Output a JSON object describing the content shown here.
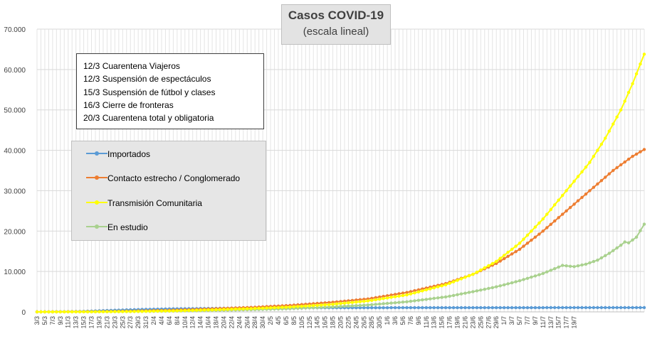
{
  "chart_data": {
    "type": "line",
    "title": "Casos  COVID-19",
    "subtitle": "(escala lineal)",
    "ylim": [
      0,
      70000
    ],
    "yticks": [
      "0",
      "10.000",
      "20.000",
      "30.000",
      "40.000",
      "50.000",
      "60.000",
      "70.000"
    ],
    "grid": true,
    "legend_position": "left",
    "events": [
      "12/3 Cuarentena Viajeros",
      "12/3 Suspensión de espectáculos",
      "15/3 Suspensión de fútbol y clases",
      "16/3 Cierre de fronteras",
      "20/3 Cuarentena total y obligatoria"
    ],
    "x_labels": [
      "3/3",
      "5/3",
      "7/3",
      "9/3",
      "11/3",
      "13/3",
      "15/3",
      "17/3",
      "19/3",
      "21/3",
      "23/3",
      "25/3",
      "27/3",
      "29/3",
      "31/3",
      "2/4",
      "4/4",
      "6/4",
      "8/4",
      "10/4",
      "12/4",
      "14/4",
      "16/4",
      "18/4",
      "20/4",
      "22/4",
      "24/4",
      "26/4",
      "28/4",
      "30/4",
      "2/5",
      "4/5",
      "6/5",
      "8/5",
      "10/5",
      "12/5",
      "14/5",
      "16/5",
      "18/5",
      "20/5",
      "22/5",
      "24/5",
      "26/5",
      "28/5",
      "30/5",
      "1/6",
      "3/6",
      "5/6",
      "7/6",
      "9/6",
      "11/6",
      "13/6",
      "15/6",
      "17/6",
      "19/6",
      "21/6",
      "23/6",
      "25/6",
      "27/6",
      "29/6",
      "1/7",
      "3/7",
      "5/7",
      "7/7",
      "9/7",
      "11/7",
      "13/7",
      "15/7",
      "17/7",
      "19/7"
    ],
    "series": [
      {
        "name": "Importados",
        "color": "#5b9bd5",
        "keypoints": [
          [
            0,
            1
          ],
          [
            7,
            40
          ],
          [
            13,
            150
          ],
          [
            20,
            400
          ],
          [
            27,
            600
          ],
          [
            35,
            750
          ],
          [
            45,
            850
          ],
          [
            55,
            980
          ],
          [
            70,
            1020
          ],
          [
            139,
            1050
          ]
        ]
      },
      {
        "name": "Contacto estrecho / Conglomerado",
        "color": "#ed7d31",
        "keypoints": [
          [
            0,
            0
          ],
          [
            14,
            50
          ],
          [
            25,
            200
          ],
          [
            35,
            420
          ],
          [
            45,
            750
          ],
          [
            55,
            1100
          ],
          [
            65,
            1600
          ],
          [
            75,
            2300
          ],
          [
            85,
            3200
          ],
          [
            95,
            4800
          ],
          [
            105,
            7000
          ],
          [
            112,
            9300
          ],
          [
            118,
            12000
          ],
          [
            124,
            15500
          ],
          [
            130,
            20000
          ],
          [
            136,
            25000
          ],
          [
            142,
            30000
          ],
          [
            148,
            35000
          ],
          [
            153,
            38500
          ],
          [
            156,
            40200
          ]
        ]
      },
      {
        "name": "Transmisión Comunitaria",
        "color": "#ffff00",
        "keypoints": [
          [
            0,
            0
          ],
          [
            14,
            20
          ],
          [
            25,
            100
          ],
          [
            35,
            250
          ],
          [
            45,
            500
          ],
          [
            55,
            800
          ],
          [
            65,
            1200
          ],
          [
            75,
            1800
          ],
          [
            85,
            2700
          ],
          [
            95,
            4200
          ],
          [
            105,
            6700
          ],
          [
            112,
            9300
          ],
          [
            118,
            12500
          ],
          [
            124,
            17000
          ],
          [
            130,
            23000
          ],
          [
            136,
            30000
          ],
          [
            142,
            37000
          ],
          [
            146,
            43000
          ],
          [
            150,
            50000
          ],
          [
            153,
            56500
          ],
          [
            156,
            63800
          ]
        ]
      },
      {
        "name": "En estudio",
        "color": "#a9d18e",
        "keypoints": [
          [
            0,
            0
          ],
          [
            14,
            20
          ],
          [
            25,
            80
          ],
          [
            35,
            200
          ],
          [
            45,
            350
          ],
          [
            55,
            550
          ],
          [
            65,
            800
          ],
          [
            75,
            1200
          ],
          [
            85,
            1700
          ],
          [
            95,
            2500
          ],
          [
            105,
            3700
          ],
          [
            112,
            5000
          ],
          [
            118,
            6200
          ],
          [
            124,
            7700
          ],
          [
            130,
            9500
          ],
          [
            135,
            11500
          ],
          [
            138,
            11200
          ],
          [
            141,
            11800
          ],
          [
            144,
            12800
          ],
          [
            147,
            14500
          ],
          [
            150,
            16500
          ],
          [
            151,
            17300
          ],
          [
            152,
            17100
          ],
          [
            154,
            18500
          ],
          [
            156,
            21700
          ]
        ]
      }
    ]
  }
}
